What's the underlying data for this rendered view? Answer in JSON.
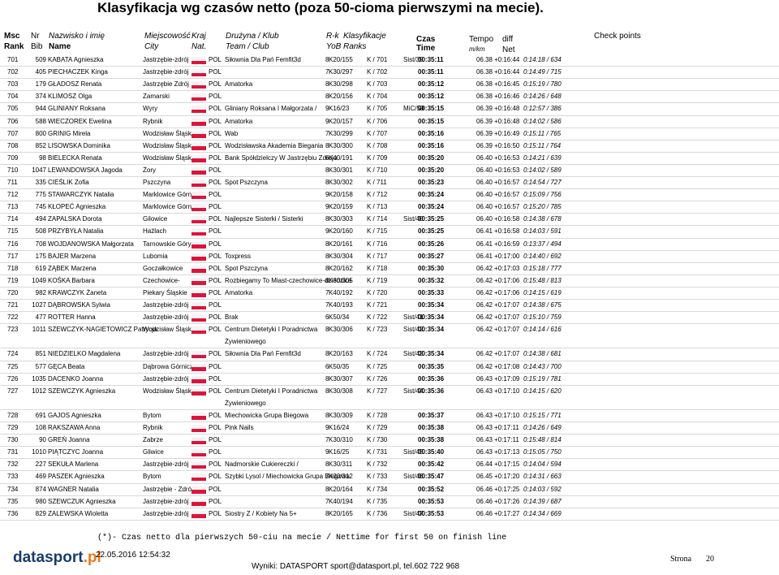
{
  "title": "Klasyfikacja wg czasów netto (poza 50-cioma pierwszymi na mecie).",
  "header": {
    "msc": "Msc",
    "rank": "Rank",
    "nr": "Nr",
    "bib": "Bib",
    "nazwisko": "Nazwisko i imię",
    "name": "Name",
    "miejscowosc": "Miejscowość",
    "city": "City",
    "kraj": "Kraj",
    "nat": "Nat.",
    "druzyna": "Drużyna / Klub",
    "team": "Team / Club",
    "rk": "R-k",
    "yob": "YoB",
    "klasyfikacje": "Klasyfikacje",
    "ranks": "Ranks",
    "czas": "Czas",
    "time": "Time",
    "tempo": "Tempo",
    "mkm": "m/km",
    "diff": "diff",
    "net": "Net",
    "checkpoints": "Check points"
  },
  "table": {
    "rows": [
      {
        "msc": "701",
        "nr": "509",
        "name": "KABATA Agnieszka",
        "city": "Jastrzębie-zdrój",
        "nat": "POL",
        "club": "Siłownia Dla Pań Femfit3d",
        "yob": "8",
        "cls1": "K20/155",
        "cls2": "K / 701",
        "cls3": "Sist/39",
        "time": "00:35:11",
        "tempo": "06.38",
        "diff": "+0:16:44",
        "net": "0:14:18 / 634"
      },
      {
        "msc": "702",
        "nr": "405",
        "name": "PIECHACZEK Kinga",
        "city": "Jastrzębie-zdrój",
        "nat": "POL",
        "yob": "7",
        "cls1": "K30/297",
        "cls2": "K / 702",
        "time": "00:35:11",
        "tempo": "06.38",
        "diff": "+0:16:44",
        "net": "0:14:49 / 715"
      },
      {
        "msc": "703",
        "nr": "179",
        "name": "GŁADOSZ Renata",
        "city": "Jastrzębie Zdrój",
        "nat": "POL",
        "club": "Amatorka",
        "yob": "8",
        "cls1": "K30/298",
        "cls2": "K / 703",
        "time": "00:35:12",
        "tempo": "06.38",
        "diff": "+0:16:45",
        "net": "0:15:19 / 780"
      },
      {
        "msc": "704",
        "nr": "374",
        "name": "KLIMOSZ Olga",
        "city": "Zamarski",
        "nat": "POL",
        "yob": "8",
        "cls1": "K20/156",
        "cls2": "K / 704",
        "time": "00:35:12",
        "tempo": "06.38",
        "diff": "+0:16:46",
        "net": "0:14:26 / 648"
      },
      {
        "msc": "705",
        "nr": "944",
        "name": "GLINIANY Roksana",
        "city": "Wyry",
        "nat": "POL",
        "club": "Gliniany Roksana I Małgorzata /",
        "yob": "9",
        "cls1": "K16/23",
        "cls2": "K / 705",
        "cls3": "MiC/59",
        "time": "00:35:15",
        "tempo": "06.39",
        "diff": "+0:16:48",
        "net": "0:12:57 / 386"
      },
      {
        "msc": "706",
        "nr": "588",
        "name": "WIECZOREK Ewelina",
        "city": "Rybnik",
        "nat": "POL",
        "club": "Amatorka",
        "yob": "9",
        "cls1": "K20/157",
        "cls2": "K / 706",
        "time": "00:35:15",
        "tempo": "06.39",
        "diff": "+0:16:48",
        "net": "0:14:02 / 586"
      },
      {
        "msc": "707",
        "nr": "800",
        "name": "GRINIG Mirela",
        "city": "Wodzisław Śląski",
        "nat": "POL",
        "club": "Wab",
        "yob": "7",
        "cls1": "K30/299",
        "cls2": "K / 707",
        "time": "00:35:16",
        "tempo": "06.39",
        "diff": "+0:16:49",
        "net": "0:15:11 / 765"
      },
      {
        "msc": "708",
        "nr": "852",
        "name": "LISOWSKA Dominika",
        "city": "Wodzisław Śląski",
        "nat": "POL",
        "club": "Wodzisławska Akademia Biegania",
        "yob": "8",
        "cls1": "K30/300",
        "cls2": "K / 708",
        "time": "00:35:16",
        "tempo": "06.39",
        "diff": "+0:16:50",
        "net": "0:15:11 / 764"
      },
      {
        "msc": "709",
        "nr": "98",
        "name": "BIELECKA Renata",
        "city": "Wodzisław Śląski",
        "nat": "POL",
        "club": "Bank Spółdzielczy W Jastrzębiu Zdroju",
        "yob": "6",
        "cls1": "K40/191",
        "cls2": "K / 709",
        "time": "00:35:20",
        "tempo": "06.40",
        "diff": "+0:16:53",
        "net": "0:14:21 / 639"
      },
      {
        "msc": "710",
        "nr": "1047",
        "name": "LEWANDOWSKA Jagoda",
        "city": "Żory",
        "nat": "POL",
        "yob": "8",
        "cls1": "K30/301",
        "cls2": "K / 710",
        "time": "00:35:20",
        "tempo": "06.40",
        "diff": "+0:16:53",
        "net": "0:14:02 / 589"
      },
      {
        "msc": "711",
        "nr": "335",
        "name": "CIEŚLIK Zofia",
        "city": "Pszczyna",
        "nat": "POL",
        "club": "Spot Pszczyna",
        "yob": "8",
        "cls1": "K30/302",
        "cls2": "K / 711",
        "time": "00:35:23",
        "tempo": "06.40",
        "diff": "+0:16:57",
        "net": "0:14:54 / 727"
      },
      {
        "msc": "712",
        "nr": "775",
        "name": "STAWARCZYK Natalia",
        "city": "Marklowice Górne",
        "nat": "POL",
        "yob": "9",
        "cls1": "K20/158",
        "cls2": "K / 712",
        "time": "00:35:24",
        "tempo": "06.40",
        "diff": "+0:16:57",
        "net": "0:15:09 / 756"
      },
      {
        "msc": "713",
        "nr": "745",
        "name": "KŁOPEĆ Agnieszka",
        "city": "Marklowice Górne",
        "nat": "POL",
        "yob": "9",
        "cls1": "K20/159",
        "cls2": "K / 713",
        "time": "00:35:24",
        "tempo": "06.40",
        "diff": "+0:16:57",
        "net": "0:15:20 / 785"
      },
      {
        "msc": "714",
        "nr": "494",
        "name": "ZAPALSKA Dorota",
        "city": "Gilowice",
        "nat": "POL",
        "club": "Najlepsze Sisterki / Sisterki",
        "yob": "8",
        "cls1": "K30/303",
        "cls2": "K / 714",
        "cls3": "Sist/40",
        "time": "00:35:25",
        "tempo": "06.40",
        "diff": "+0:16:58",
        "net": "0:14:38 / 678"
      },
      {
        "msc": "715",
        "nr": "508",
        "name": "PRZYBYŁA Natalia",
        "city": "Haźlach",
        "nat": "POL",
        "yob": "9",
        "cls1": "K20/160",
        "cls2": "K / 715",
        "time": "00:35:25",
        "tempo": "06.41",
        "diff": "+0:16:58",
        "net": "0:14:03 / 591"
      },
      {
        "msc": "716",
        "nr": "708",
        "name": "WOJDANOWSKA Małgorzata",
        "city": "Tarnowskie Góry",
        "nat": "POL",
        "yob": "8",
        "cls1": "K20/161",
        "cls2": "K / 716",
        "time": "00:35:26",
        "tempo": "06.41",
        "diff": "+0:16:59",
        "net": "0:13:37 / 494"
      },
      {
        "msc": "717",
        "nr": "175",
        "name": "BAJER Marzena",
        "city": "Lubomia",
        "nat": "POL",
        "club": "Toxpress",
        "yob": "8",
        "cls1": "K30/304",
        "cls2": "K / 717",
        "time": "00:35:27",
        "tempo": "06.41",
        "diff": "+0:17:00",
        "net": "0:14:40 / 692"
      },
      {
        "msc": "718",
        "nr": "619",
        "name": "ZĄBEK Marzena",
        "city": "Goczałkowice",
        "nat": "POL",
        "club": "Spot Pszczyna",
        "yob": "8",
        "cls1": "K20/162",
        "cls2": "K / 718",
        "time": "00:35:30",
        "tempo": "06.42",
        "diff": "+0:17:03",
        "net": "0:15:18 / 777"
      },
      {
        "msc": "719",
        "nr": "1049",
        "name": "KOŚKA Barbara",
        "city": "Czechowice-",
        "nat": "POL",
        "club": "Rozbiegamy To Miast-czechowice-dziedzice",
        "yob": "8",
        "cls1": "K30/305",
        "cls2": "K / 719",
        "time": "00:35:32",
        "tempo": "06.42",
        "diff": "+0:17:06",
        "net": "0:15:48 / 813"
      },
      {
        "msc": "720",
        "nr": "982",
        "name": "KRAWCZYK Żaneta",
        "city": "Piekary Śląskie",
        "nat": "POL",
        "club": "Amatorka",
        "yob": "7",
        "cls1": "K40/192",
        "cls2": "K / 720",
        "time": "00:35:33",
        "tempo": "06.42",
        "diff": "+0:17:06",
        "net": "0:14:15 / 619"
      },
      {
        "msc": "721",
        "nr": "1027",
        "name": "DĄBROWSKA Sylwia",
        "city": "Jastrzębie-zdrój",
        "nat": "POL",
        "yob": "7",
        "cls1": "K40/193",
        "cls2": "K / 721",
        "time": "00:35:34",
        "tempo": "06.42",
        "diff": "+0:17:07",
        "net": "0:14:38 / 675"
      },
      {
        "msc": "722",
        "nr": "477",
        "name": "ROTTER Hanna",
        "city": "Jastrzębie-zdrój",
        "nat": "POL",
        "club": "Brak",
        "yob": "6",
        "cls1": "K50/34",
        "cls2": "K / 722",
        "cls3": "Sist/41",
        "time": "00:35:34",
        "tempo": "06.42",
        "diff": "+0:17:07",
        "net": "0:15:10 / 759"
      },
      {
        "msc": "723",
        "nr": "1011",
        "name": "SZEWCZYK-NAGIETOWICZ Patrycja",
        "city": "Wodzisław Śląski",
        "nat": "POL",
        "club": "Centrum Dietetyki I Poradnictwa",
        "club2": "Żywieniowego",
        "yob": "8",
        "cls1": "K30/306",
        "cls2": "K / 723",
        "cls3": "Sist/42",
        "time": "00:35:34",
        "tempo": "06.42",
        "diff": "+0:17:07",
        "net": "0:14:14 / 616"
      },
      {
        "msc": "724",
        "nr": "851",
        "name": "NIEDZIELKO Magdalena",
        "city": "Jastrzębie-zdrój",
        "nat": "POL",
        "club": "Siłownia Dla Pań Femfit3d",
        "yob": "8",
        "cls1": "K20/163",
        "cls2": "K / 724",
        "cls3": "Sist/43",
        "time": "00:35:34",
        "tempo": "06.42",
        "diff": "+0:17:07",
        "net": "0:14:38 / 681"
      },
      {
        "msc": "725",
        "nr": "577",
        "name": "GĘCA Beata",
        "city": "Dąbrowa Górnicza",
        "nat": "POL",
        "yob": "6",
        "cls1": "K50/35",
        "cls2": "K / 725",
        "time": "00:35:35",
        "tempo": "06.42",
        "diff": "+0:17:08",
        "net": "0:14:43 / 700"
      },
      {
        "msc": "726",
        "nr": "1035",
        "name": "DACENKO Joanna",
        "city": "Jastrzębie-zdrój",
        "nat": "POL",
        "yob": "8",
        "cls1": "K30/307",
        "cls2": "K / 726",
        "time": "00:35:36",
        "tempo": "06.43",
        "diff": "+0:17:09",
        "net": "0:15:19 / 781"
      },
      {
        "msc": "727",
        "nr": "1012",
        "name": "SZEWCZYK Agnieszka",
        "city": "Wodzisław Śląski",
        "nat": "POL",
        "club": "Centrum Dietetyki I Poradnictwa",
        "club2": "Żywieniowego",
        "yob": "8",
        "cls1": "K30/308",
        "cls2": "K / 727",
        "cls3": "Sist/44",
        "time": "00:35:36",
        "tempo": "06.43",
        "diff": "+0:17:10",
        "net": "0:14:15 / 620"
      },
      {
        "msc": "728",
        "nr": "691",
        "name": "GAJOS Agnieszka",
        "city": "Bytom",
        "nat": "POL",
        "club": "Miechowicka Grupa Biegowa",
        "yob": "8",
        "cls1": "K30/309",
        "cls2": "K / 728",
        "time": "00:35:37",
        "tempo": "06.43",
        "diff": "+0:17:10",
        "net": "0:15:15 / 771"
      },
      {
        "msc": "729",
        "nr": "108",
        "name": "RAKSZAWA Anna",
        "city": "Rybnik",
        "nat": "POL",
        "club": "Pink Nails",
        "yob": "9",
        "cls1": "K16/24",
        "cls2": "K / 729",
        "time": "00:35:38",
        "tempo": "06.43",
        "diff": "+0:17:11",
        "net": "0:14:26 / 649"
      },
      {
        "msc": "730",
        "nr": "90",
        "name": "GREŃ Joanna",
        "city": "Zabrze",
        "nat": "POL",
        "yob": "7",
        "cls1": "K30/310",
        "cls2": "K / 730",
        "time": "00:35:38",
        "tempo": "06.43",
        "diff": "+0:17:11",
        "net": "0:15:48 / 814"
      },
      {
        "msc": "731",
        "nr": "1010",
        "name": "PIĄTCZYC Joanna",
        "city": "Gliwice",
        "nat": "POL",
        "yob": "9",
        "cls1": "K16/25",
        "cls2": "K / 731",
        "cls3": "Sist/45",
        "time": "00:35:40",
        "tempo": "06.43",
        "diff": "+0:17:13",
        "net": "0:15:05 / 750"
      },
      {
        "msc": "732",
        "nr": "227",
        "name": "SEKUŁA Marlena",
        "city": "Jastrzębie-zdrój",
        "nat": "POL",
        "club": "Nadmorskie Cukiereczki /",
        "yob": "8",
        "cls1": "K30/311",
        "cls2": "K / 732",
        "time": "00:35:42",
        "tempo": "06.44",
        "diff": "+0:17:15",
        "net": "0:14:04 / 594"
      },
      {
        "msc": "733",
        "nr": "469",
        "name": "PASZEK Agnieszka",
        "city": "Bytom",
        "nat": "POL",
        "club": "Szybki Lysol / Miechowicka Grupa Biegowa",
        "yob": "7",
        "cls1": "K30/312",
        "cls2": "K / 733",
        "cls3": "Sist/46",
        "time": "00:35:47",
        "tempo": "06.45",
        "diff": "+0:17:20",
        "net": "0:14:31 / 663"
      },
      {
        "msc": "734",
        "nr": "874",
        "name": "WAGNER Natalia",
        "city": "Jastrzębie - Zdrój",
        "nat": "POL",
        "yob": "8",
        "cls1": "K20/164",
        "cls2": "K / 734",
        "time": "00:35:52",
        "tempo": "06.46",
        "diff": "+0:17:25",
        "net": "0:14:03 / 592"
      },
      {
        "msc": "735",
        "nr": "980",
        "name": "SZEWCZUK Agnieszka",
        "city": "Jastrzębie-zdrój",
        "nat": "POL",
        "yob": "7",
        "cls1": "K40/194",
        "cls2": "K / 735",
        "time": "00:35:53",
        "tempo": "06.46",
        "diff": "+0:17:26",
        "net": "0:14:39 / 687"
      },
      {
        "msc": "736",
        "nr": "829",
        "name": "ZALEWSKA Wioletta",
        "city": "Jastrzębie-zdrój",
        "nat": "POL",
        "club": "Siostry Z / Kobiety Na 5+",
        "yob": "8",
        "cls1": "K20/165",
        "cls2": "K / 736",
        "cls3": "Sist/47",
        "time": "00:35:53",
        "tempo": "06.46",
        "diff": "+0:17:27",
        "net": "0:14:34 / 669"
      }
    ]
  },
  "footer": {
    "note": "(*)- Czas netto dla pierwszych 50-ciu na mecie / Nettime for first 50 on finish line",
    "logo_a": "datasport",
    "logo_b": ".pl",
    "date": "22.05.2016 12:54:32",
    "contact": "Wyniki: DATASPORT sport@datasport.pl, tel.602 722 968",
    "strona": "Strona",
    "page": "20"
  }
}
